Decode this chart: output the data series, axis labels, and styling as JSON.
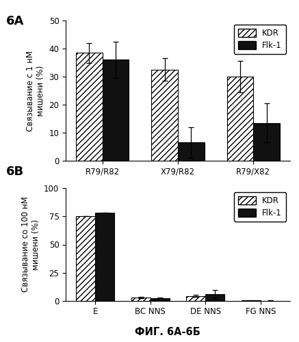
{
  "fig6A": {
    "categories": [
      "R79/R82",
      "X79/R82",
      "R79/X82"
    ],
    "KDR_values": [
      38.5,
      32.5,
      30.0
    ],
    "KDR_errors": [
      3.5,
      4.0,
      5.5
    ],
    "Flk1_values": [
      36.0,
      6.5,
      13.5
    ],
    "Flk1_errors": [
      6.5,
      5.5,
      7.0
    ],
    "ylabel": "Мишени (%)",
    "ylabel_top": "Связывание с 1 нМ",
    "ylim": [
      0,
      50
    ],
    "yticks": [
      0,
      10,
      20,
      30,
      40,
      50
    ],
    "panel_label": "6A"
  },
  "fig6B": {
    "categories": [
      "E",
      "BC NNS",
      "DE NNS",
      "FG NNS"
    ],
    "KDR_values": [
      75.0,
      3.0,
      4.5,
      0.5
    ],
    "KDR_errors": [
      0.0,
      0.5,
      0.8,
      0.3
    ],
    "Flk1_values": [
      78.0,
      2.5,
      6.0,
      0.3
    ],
    "Flk1_errors": [
      0.0,
      0.8,
      3.5,
      0.2
    ],
    "ylabel": "Мишени (%)",
    "ylabel_top": "Связывание со 100 нМ",
    "ylim": [
      0,
      100
    ],
    "yticks": [
      0,
      25,
      50,
      75,
      100
    ],
    "panel_label": "6B"
  },
  "legend_labels": [
    "KDR",
    "Flk-1"
  ],
  "hatch_pattern": "////",
  "solid_color": "#111111",
  "figure_label": "ФИГ. 6А-6Б",
  "bar_width": 0.35,
  "background_color": "#ffffff"
}
